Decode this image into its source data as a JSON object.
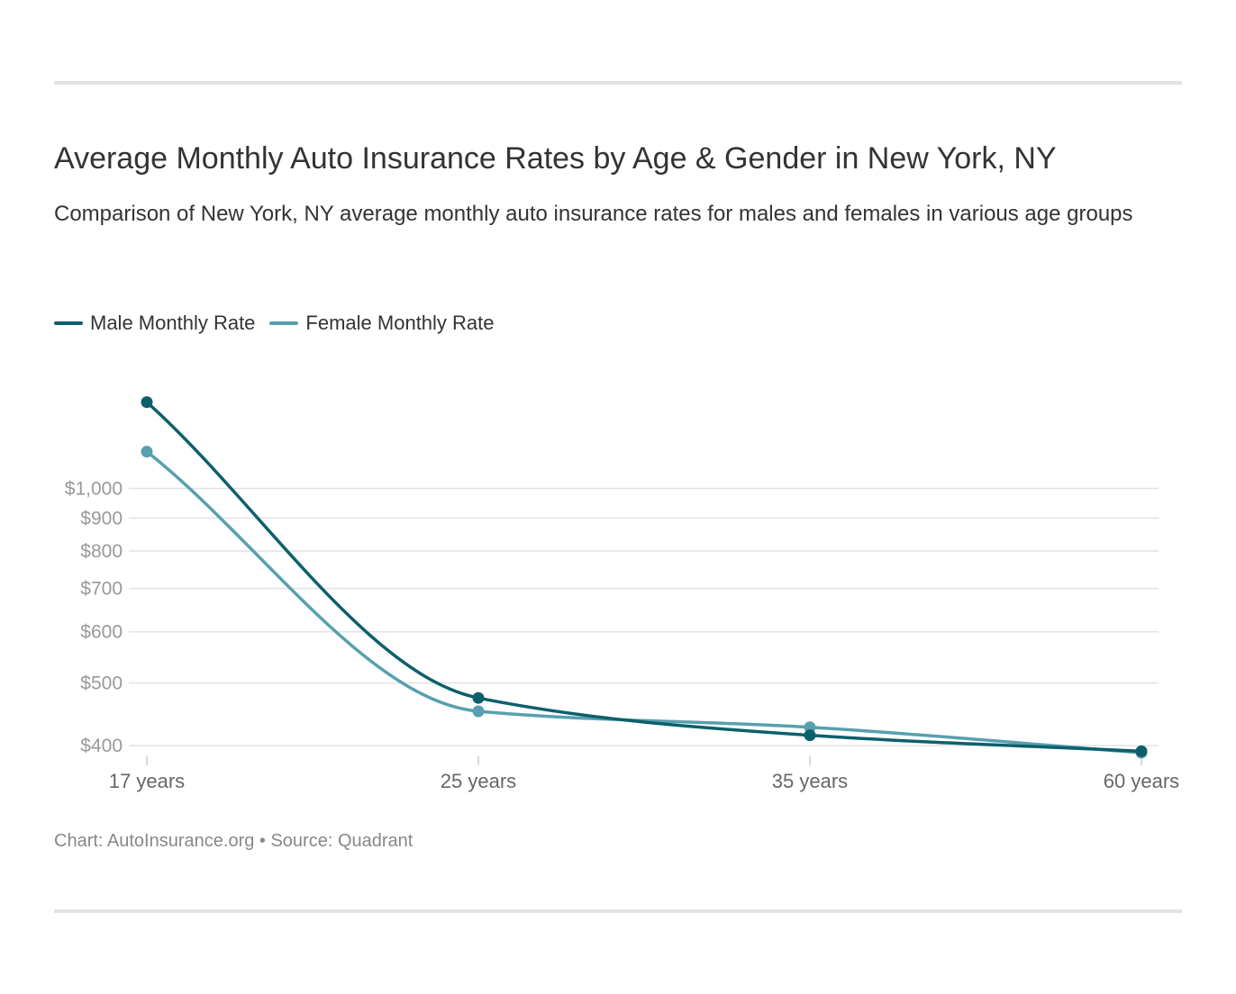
{
  "title": "Average Monthly Auto Insurance Rates by Age & Gender in New York, NY",
  "subtitle": "Comparison of New York, NY average monthly auto insurance rates for males and females in various age groups",
  "footer": "Chart: AutoInsurance.org • Source: Quadrant",
  "colors": {
    "male": "#0d5f6c",
    "female": "#57a0ae",
    "grid": "#e2e2e2",
    "tick": "#999999",
    "xtick": "#666666"
  },
  "chart_data": {
    "type": "line",
    "x": [
      "17 years",
      "25 years",
      "35 years",
      "60 years"
    ],
    "y_scale": "log",
    "y_ticks": [
      400,
      500,
      600,
      700,
      800,
      900,
      1000
    ],
    "y_tick_labels": [
      "$400",
      "$500",
      "$600",
      "$700",
      "$800",
      "$900",
      "$1,000"
    ],
    "ylim": [
      390,
      1600
    ],
    "legend_position": "top-left",
    "grid": true,
    "series": [
      {
        "name": "Male Monthly Rate",
        "values": [
          1360,
          474,
          415,
          392
        ]
      },
      {
        "name": "Female Monthly Rate",
        "values": [
          1140,
          452,
          427,
          390
        ]
      }
    ]
  }
}
